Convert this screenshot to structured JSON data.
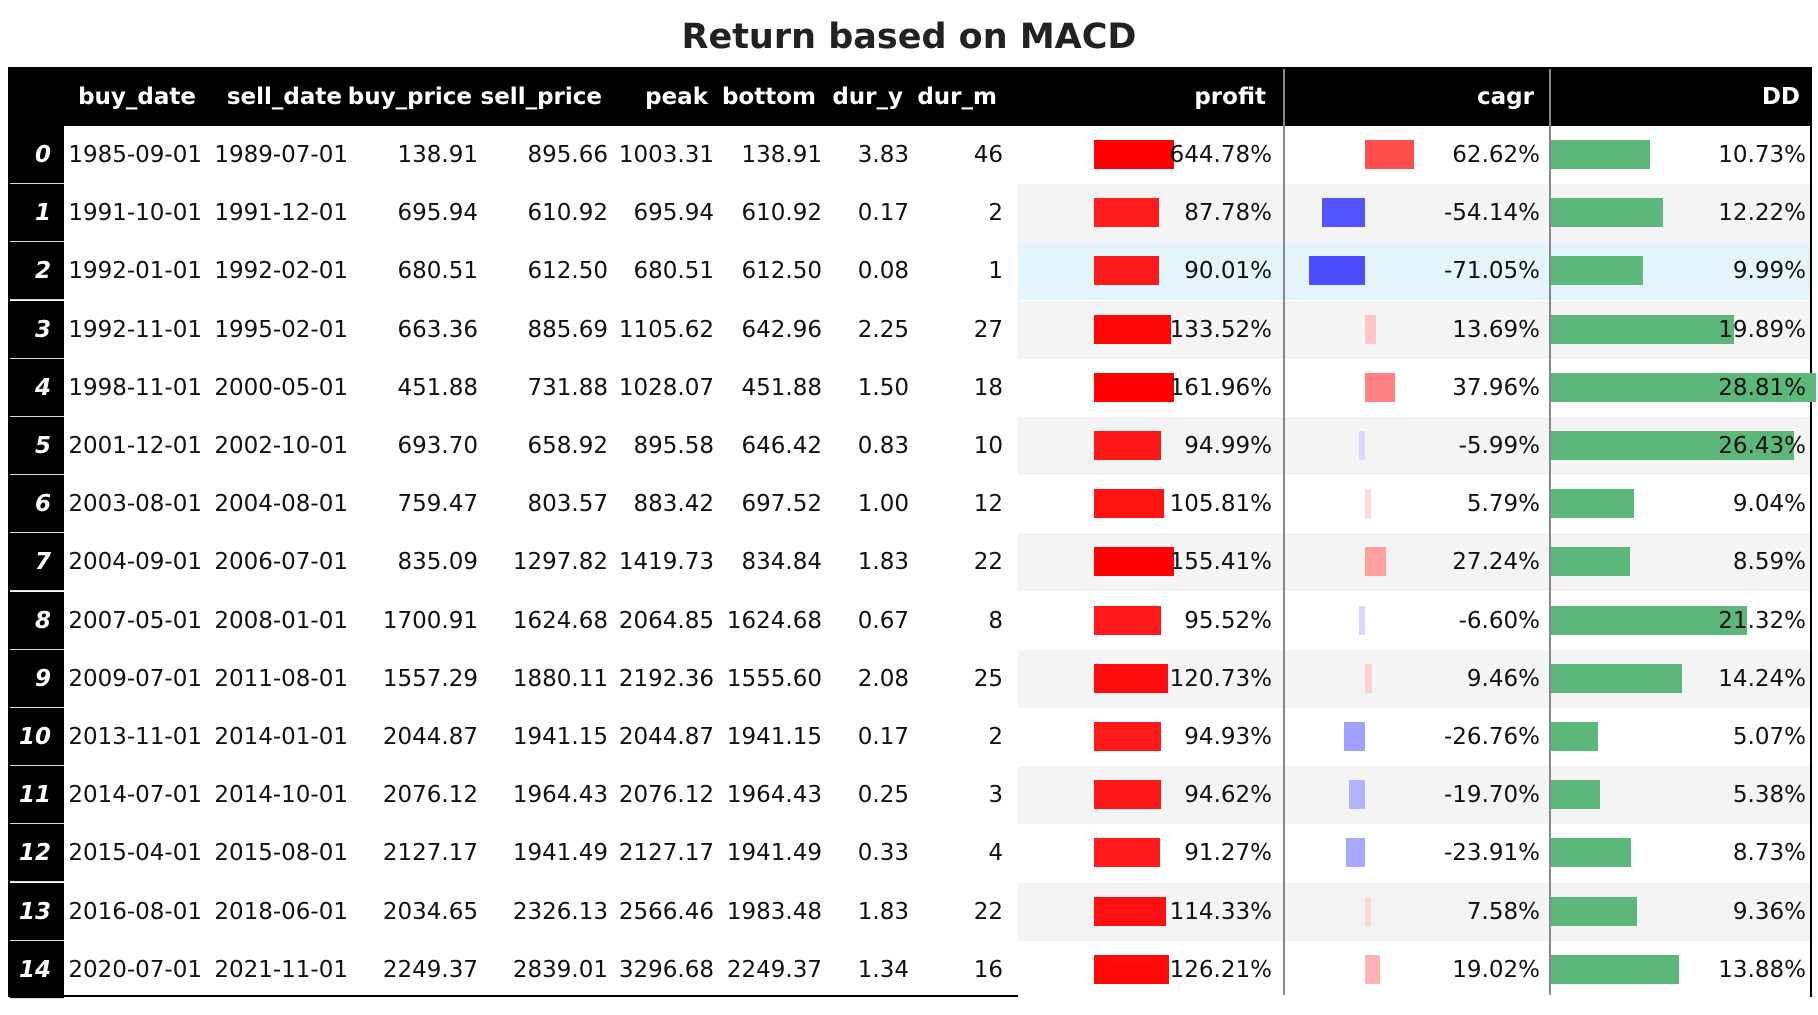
{
  "title": "Return based on MACD",
  "colors": {
    "profit_bar": "#ff0000",
    "cagr_pos": "#ff4d4d",
    "cagr_neg": "#4d4dff",
    "dd_bar": "#5cb87a",
    "row_alt": "#f4f4f4",
    "row_highlight": "#e4f4fb",
    "header_bg": "#000000"
  },
  "chart_data": {
    "type": "table",
    "title": "Return based on MACD",
    "columns": [
      "",
      "buy_date",
      "sell_date",
      "buy_price",
      "sell_price",
      "peak",
      "bottom",
      "dur_y",
      "dur_m",
      "profit",
      "cagr",
      "DD"
    ],
    "rows": [
      {
        "idx": "0",
        "buy_date": "1985-09-01",
        "sell_date": "1989-07-01",
        "buy_price": "138.91",
        "sell_price": "895.66",
        "peak": "1003.31",
        "bottom": "138.91",
        "dur_y": "3.83",
        "dur_m": "46",
        "profit": "644.78%",
        "cagr": "62.62%",
        "DD": "10.73%",
        "profit_value": 644.78,
        "cagr_value": 62.62,
        "dd_value": 10.73
      },
      {
        "idx": "1",
        "buy_date": "1991-10-01",
        "sell_date": "1991-12-01",
        "buy_price": "695.94",
        "sell_price": "610.92",
        "peak": "695.94",
        "bottom": "610.92",
        "dur_y": "0.17",
        "dur_m": "2",
        "profit": "87.78%",
        "cagr": "-54.14%",
        "DD": "12.22%",
        "profit_value": 87.78,
        "cagr_value": -54.14,
        "dd_value": 12.22
      },
      {
        "idx": "2",
        "buy_date": "1992-01-01",
        "sell_date": "1992-02-01",
        "buy_price": "680.51",
        "sell_price": "612.50",
        "peak": "680.51",
        "bottom": "612.50",
        "dur_y": "0.08",
        "dur_m": "1",
        "profit": "90.01%",
        "cagr": "-71.05%",
        "DD": "9.99%",
        "profit_value": 90.01,
        "cagr_value": -71.05,
        "dd_value": 9.99
      },
      {
        "idx": "3",
        "buy_date": "1992-11-01",
        "sell_date": "1995-02-01",
        "buy_price": "663.36",
        "sell_price": "885.69",
        "peak": "1105.62",
        "bottom": "642.96",
        "dur_y": "2.25",
        "dur_m": "27",
        "profit": "133.52%",
        "cagr": "13.69%",
        "DD": "19.89%",
        "profit_value": 133.52,
        "cagr_value": 13.69,
        "dd_value": 19.89
      },
      {
        "idx": "4",
        "buy_date": "1998-11-01",
        "sell_date": "2000-05-01",
        "buy_price": "451.88",
        "sell_price": "731.88",
        "peak": "1028.07",
        "bottom": "451.88",
        "dur_y": "1.50",
        "dur_m": "18",
        "profit": "161.96%",
        "cagr": "37.96%",
        "DD": "28.81%",
        "profit_value": 161.96,
        "cagr_value": 37.96,
        "dd_value": 28.81
      },
      {
        "idx": "5",
        "buy_date": "2001-12-01",
        "sell_date": "2002-10-01",
        "buy_price": "693.70",
        "sell_price": "658.92",
        "peak": "895.58",
        "bottom": "646.42",
        "dur_y": "0.83",
        "dur_m": "10",
        "profit": "94.99%",
        "cagr": "-5.99%",
        "DD": "26.43%",
        "profit_value": 94.99,
        "cagr_value": -5.99,
        "dd_value": 26.43
      },
      {
        "idx": "6",
        "buy_date": "2003-08-01",
        "sell_date": "2004-08-01",
        "buy_price": "759.47",
        "sell_price": "803.57",
        "peak": "883.42",
        "bottom": "697.52",
        "dur_y": "1.00",
        "dur_m": "12",
        "profit": "105.81%",
        "cagr": "5.79%",
        "DD": "9.04%",
        "profit_value": 105.81,
        "cagr_value": 5.79,
        "dd_value": 9.04
      },
      {
        "idx": "7",
        "buy_date": "2004-09-01",
        "sell_date": "2006-07-01",
        "buy_price": "835.09",
        "sell_price": "1297.82",
        "peak": "1419.73",
        "bottom": "834.84",
        "dur_y": "1.83",
        "dur_m": "22",
        "profit": "155.41%",
        "cagr": "27.24%",
        "DD": "8.59%",
        "profit_value": 155.41,
        "cagr_value": 27.24,
        "dd_value": 8.59
      },
      {
        "idx": "8",
        "buy_date": "2007-05-01",
        "sell_date": "2008-01-01",
        "buy_price": "1700.91",
        "sell_price": "1624.68",
        "peak": "2064.85",
        "bottom": "1624.68",
        "dur_y": "0.67",
        "dur_m": "8",
        "profit": "95.52%",
        "cagr": "-6.60%",
        "DD": "21.32%",
        "profit_value": 95.52,
        "cagr_value": -6.6,
        "dd_value": 21.32
      },
      {
        "idx": "9",
        "buy_date": "2009-07-01",
        "sell_date": "2011-08-01",
        "buy_price": "1557.29",
        "sell_price": "1880.11",
        "peak": "2192.36",
        "bottom": "1555.60",
        "dur_y": "2.08",
        "dur_m": "25",
        "profit": "120.73%",
        "cagr": "9.46%",
        "DD": "14.24%",
        "profit_value": 120.73,
        "cagr_value": 9.46,
        "dd_value": 14.24
      },
      {
        "idx": "10",
        "buy_date": "2013-11-01",
        "sell_date": "2014-01-01",
        "buy_price": "2044.87",
        "sell_price": "1941.15",
        "peak": "2044.87",
        "bottom": "1941.15",
        "dur_y": "0.17",
        "dur_m": "2",
        "profit": "94.93%",
        "cagr": "-26.76%",
        "DD": "5.07%",
        "profit_value": 94.93,
        "cagr_value": -26.76,
        "dd_value": 5.07
      },
      {
        "idx": "11",
        "buy_date": "2014-07-01",
        "sell_date": "2014-10-01",
        "buy_price": "2076.12",
        "sell_price": "1964.43",
        "peak": "2076.12",
        "bottom": "1964.43",
        "dur_y": "0.25",
        "dur_m": "3",
        "profit": "94.62%",
        "cagr": "-19.70%",
        "DD": "5.38%",
        "profit_value": 94.62,
        "cagr_value": -19.7,
        "dd_value": 5.38
      },
      {
        "idx": "12",
        "buy_date": "2015-04-01",
        "sell_date": "2015-08-01",
        "buy_price": "2127.17",
        "sell_price": "1941.49",
        "peak": "2127.17",
        "bottom": "1941.49",
        "dur_y": "0.33",
        "dur_m": "4",
        "profit": "91.27%",
        "cagr": "-23.91%",
        "DD": "8.73%",
        "profit_value": 91.27,
        "cagr_value": -23.91,
        "dd_value": 8.73
      },
      {
        "idx": "13",
        "buy_date": "2016-08-01",
        "sell_date": "2018-06-01",
        "buy_price": "2034.65",
        "sell_price": "2326.13",
        "peak": "2566.46",
        "bottom": "1983.48",
        "dur_y": "1.83",
        "dur_m": "22",
        "profit": "114.33%",
        "cagr": "7.58%",
        "DD": "9.36%",
        "profit_value": 114.33,
        "cagr_value": 7.58,
        "dd_value": 9.36
      },
      {
        "idx": "14",
        "buy_date": "2020-07-01",
        "sell_date": "2021-11-01",
        "buy_price": "2249.37",
        "sell_price": "2839.01",
        "peak": "3296.68",
        "bottom": "2249.37",
        "dur_y": "1.34",
        "dur_m": "16",
        "profit": "126.21%",
        "cagr": "19.02%",
        "DD": "13.88%",
        "profit_value": 126.21,
        "cagr_value": 19.02,
        "dd_value": 13.88
      }
    ],
    "highlighted_row": 2
  }
}
